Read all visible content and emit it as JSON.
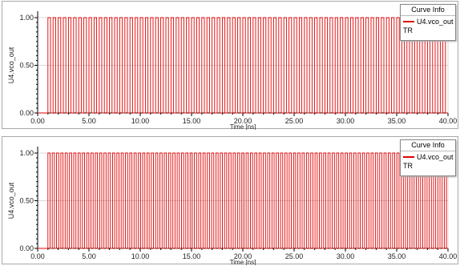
{
  "chart_data": [
    {
      "type": "line",
      "title": "",
      "ylabel": "U4.vco_out",
      "xlabel": "Time [ns]",
      "xlim": [
        0,
        40
      ],
      "ylim": [
        0,
        1
      ],
      "xticks": [
        "0.00",
        "5.00",
        "10.00",
        "15.00",
        "20.00",
        "25.00",
        "30.00",
        "35.00",
        "40.00"
      ],
      "yticks": [
        "0.00",
        "0.50",
        "1.00"
      ],
      "grid": true,
      "legend": {
        "title": "Curve Info",
        "entries": [
          "U4.vco_out"
        ],
        "note": "TR",
        "placement": "top-right"
      },
      "series": [
        {
          "name": "U4.vco_out",
          "color": "#e00000",
          "waveform": "square",
          "start": 1.0,
          "period": 0.5,
          "duty": 0.5,
          "end": 40
        }
      ]
    },
    {
      "type": "line",
      "title": "",
      "ylabel": "U4.vco_out",
      "xlabel": "Time [ns]",
      "xlim": [
        0,
        40
      ],
      "ylim": [
        0,
        1
      ],
      "xticks": [
        "0.00",
        "5.00",
        "10.00",
        "15.00",
        "20.00",
        "25.00",
        "30.00",
        "35.00",
        "40.00"
      ],
      "yticks": [
        "0.00",
        "0.50",
        "1.00"
      ],
      "grid": true,
      "legend": {
        "title": "Curve Info",
        "entries": [
          "U4.vco_out"
        ],
        "note": "TR",
        "placement": "top-right"
      },
      "series": [
        {
          "name": "U4.vco_out",
          "color": "#e00000",
          "waveform": "square",
          "start": 1.0,
          "period": 0.42,
          "duty": 0.5,
          "end": 40
        }
      ]
    }
  ]
}
